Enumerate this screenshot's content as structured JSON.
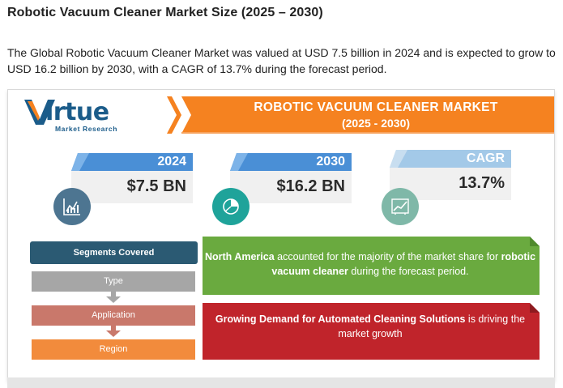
{
  "page": {
    "title": "Robotic Vacuum Cleaner Market Size (2025 – 2030)",
    "intro": "The Global Robotic Vacuum Cleaner Market was valued at USD 7.5 billion in 2024 and is expected to grow to USD 16.2 billion by 2030, with a CAGR of 13.7% during the forecast period."
  },
  "infographic": {
    "logo": {
      "word": "irtue",
      "sub": "Market Research"
    },
    "banner": {
      "title": "ROBOTIC VACUUM CLEANER MARKET",
      "years": "(2025 - 2030)"
    },
    "stats": [
      {
        "label": "2024",
        "value": "$7.5 BN",
        "icon": "chart-icon"
      },
      {
        "label": "2030",
        "value": "$16.2 BN",
        "icon": "pie-chart-icon"
      },
      {
        "label": "CAGR",
        "value": "13.7%",
        "icon": "growth-chart-icon"
      }
    ],
    "segments": {
      "header": "Segments Covered",
      "items": [
        "Type",
        "Application",
        "Region"
      ]
    },
    "facts": {
      "north_america": {
        "lead": "North America",
        "mid": " accounted for the majority of the market share for ",
        "bold": "robotic vacuum cleaner",
        "tail": " during the forecast period."
      },
      "demand": {
        "bold": "Growing Demand for Automated Cleaning Solutions",
        "tail": " is driving the market growth"
      }
    }
  },
  "colors": {
    "orange": "#f58220",
    "blue_tab": "#4a8fd6",
    "navy": "#1b5c8a",
    "teal": "#1fa39a",
    "sage": "#7fb8a8",
    "slate_circle": "#4d7591",
    "segment_header": "#2b5a73",
    "type_box": "#a6a6a6",
    "application_box": "#c9786b",
    "region_box": "#f28b3c",
    "green_card": "#6aaa3f",
    "red_card": "#c0242b"
  }
}
